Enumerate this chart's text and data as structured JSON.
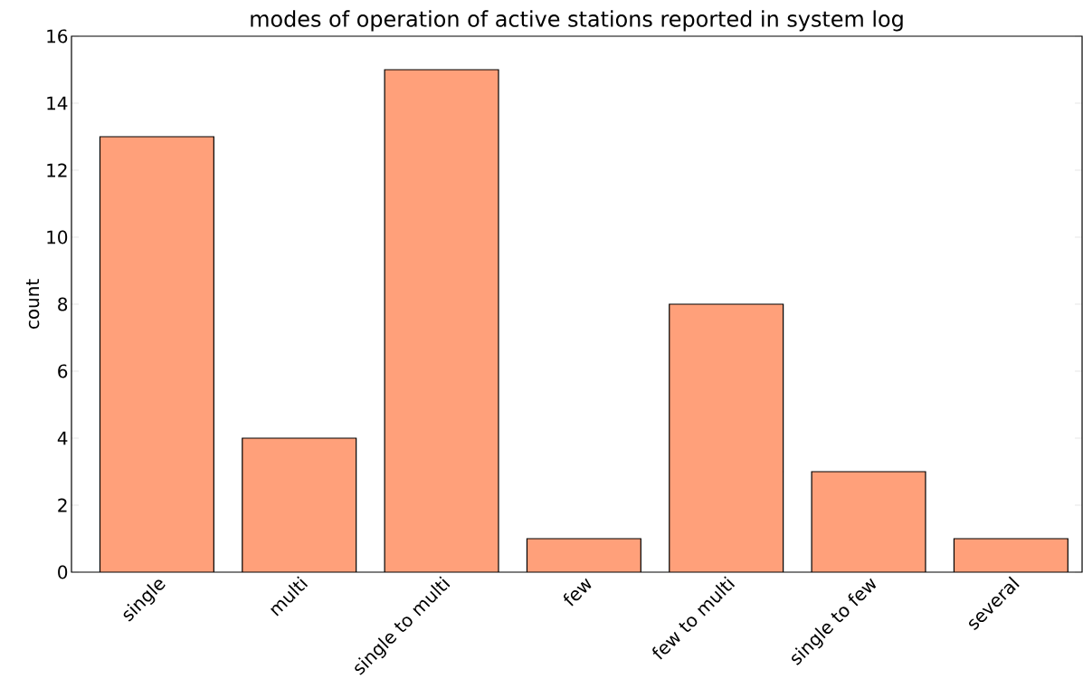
{
  "chart_data": {
    "type": "bar",
    "title": "modes of operation of active stations reported in system log",
    "ylabel": "count",
    "categories": [
      "single",
      "multi",
      "single to multi",
      "few",
      "few to multi",
      "single to few",
      "several"
    ],
    "values": [
      13,
      4,
      15,
      1,
      8,
      3,
      1
    ],
    "color": "#ffa07a",
    "ylim": [
      0,
      16
    ],
    "yticks": [
      0,
      2,
      4,
      6,
      8,
      10,
      12,
      14,
      16
    ],
    "grid": false
  }
}
